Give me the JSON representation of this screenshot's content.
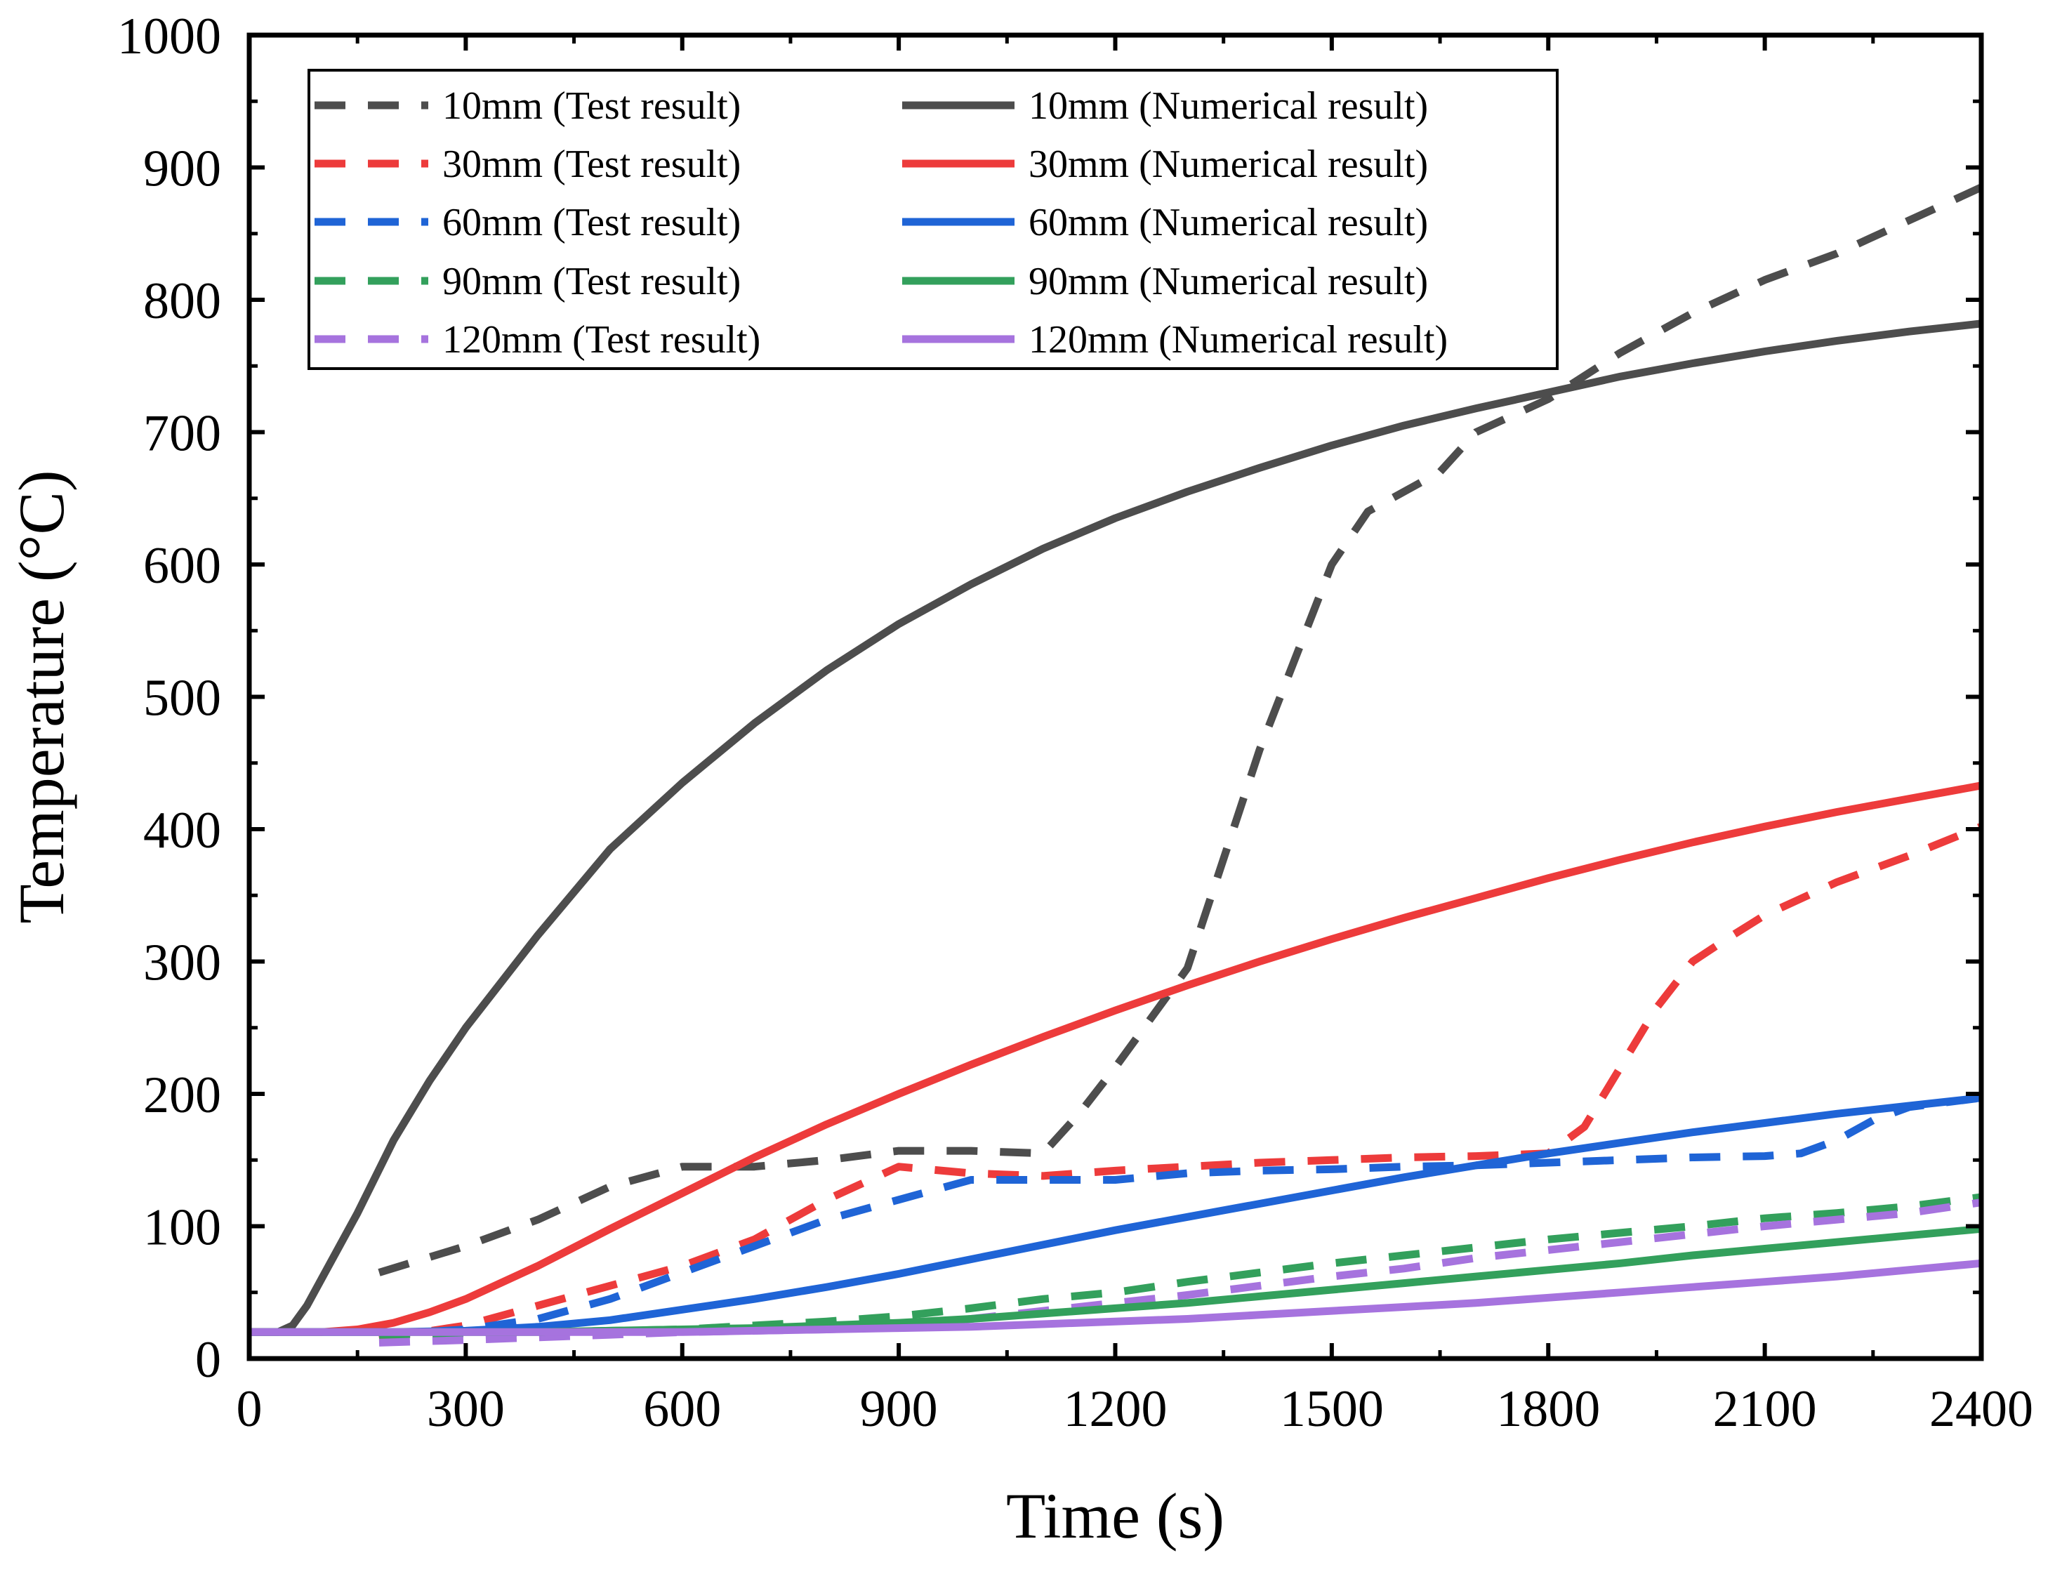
{
  "chart_data": {
    "type": "line",
    "title": "",
    "xlabel": "Time (s)",
    "ylabel": "Temperature (°C)",
    "xlim": [
      0,
      2400
    ],
    "ylim": [
      0,
      1000
    ],
    "xticks": [
      0,
      300,
      600,
      900,
      1200,
      1500,
      1800,
      2100,
      2400
    ],
    "yticks": [
      0,
      100,
      200,
      300,
      400,
      500,
      600,
      700,
      800,
      900,
      1000
    ],
    "xtick_labels": [
      "0",
      "300",
      "600",
      "900",
      "1200",
      "1500",
      "1800",
      "2100",
      "2400"
    ],
    "ytick_labels": [
      "0",
      "100",
      "200",
      "300",
      "400",
      "500",
      "600",
      "700",
      "800",
      "900",
      "1000"
    ],
    "grid": false,
    "legend_position": "top-left",
    "series": [
      {
        "name": "10mm (Test result)",
        "style": "dashed",
        "color": "#4d4d4d",
        "x": [
          180,
          300,
          400,
          500,
          600,
          700,
          800,
          900,
          1000,
          1100,
          1150,
          1200,
          1300,
          1400,
          1500,
          1550,
          1650,
          1700,
          1800,
          1900,
          2000,
          2100,
          2200,
          2300,
          2400
        ],
        "y": [
          65,
          85,
          105,
          130,
          145,
          145,
          150,
          157,
          157,
          155,
          185,
          220,
          295,
          460,
          600,
          640,
          670,
          700,
          725,
          760,
          790,
          815,
          835,
          860,
          885
        ]
      },
      {
        "name": "30mm (Test result)",
        "style": "dashed",
        "color": "#ed3b3b",
        "x": [
          180,
          300,
          400,
          500,
          600,
          700,
          800,
          900,
          1000,
          1100,
          1200,
          1300,
          1400,
          1500,
          1600,
          1700,
          1800,
          1850,
          1900,
          1950,
          2000,
          2050,
          2100,
          2200,
          2300,
          2400
        ],
        "y": [
          15,
          25,
          40,
          55,
          70,
          90,
          120,
          145,
          140,
          138,
          142,
          145,
          148,
          150,
          152,
          153,
          155,
          175,
          220,
          265,
          300,
          318,
          335,
          360,
          380,
          402
        ]
      },
      {
        "name": "60mm (Test result)",
        "style": "dashed",
        "color": "#1f64d6",
        "x": [
          180,
          300,
          400,
          500,
          600,
          700,
          800,
          900,
          1000,
          1100,
          1200,
          1300,
          1400,
          1500,
          1600,
          1700,
          1800,
          1900,
          2000,
          2100,
          2150,
          2200,
          2250,
          2300,
          2400
        ],
        "y": [
          18,
          22,
          30,
          45,
          65,
          85,
          105,
          120,
          135,
          135,
          135,
          140,
          142,
          143,
          145,
          146,
          148,
          150,
          152,
          153,
          155,
          165,
          180,
          190,
          197
        ]
      },
      {
        "name": "90mm (Test result)",
        "style": "dashed",
        "color": "#33a05c",
        "x": [
          180,
          300,
          400,
          500,
          600,
          700,
          800,
          900,
          1000,
          1100,
          1200,
          1300,
          1400,
          1500,
          1600,
          1700,
          1800,
          1900,
          2000,
          2100,
          2200,
          2300,
          2400
        ],
        "y": [
          18,
          19,
          20,
          21,
          22,
          25,
          28,
          32,
          38,
          45,
          50,
          58,
          65,
          72,
          78,
          84,
          90,
          95,
          100,
          106,
          110,
          115,
          122
        ]
      },
      {
        "name": "120mm (Test result)",
        "style": "dashed",
        "color": "#a673de",
        "x": [
          180,
          300,
          400,
          500,
          600,
          700,
          800,
          900,
          1000,
          1100,
          1200,
          1300,
          1400,
          1500,
          1600,
          1700,
          1800,
          1900,
          2000,
          2100,
          2200,
          2300,
          2400
        ],
        "y": [
          12,
          14,
          16,
          18,
          20,
          21,
          22,
          24,
          30,
          36,
          42,
          48,
          55,
          62,
          68,
          76,
          82,
          88,
          94,
          100,
          105,
          110,
          118
        ]
      },
      {
        "name": "10mm (Numerical result)",
        "style": "solid",
        "color": "#4d4d4d",
        "x": [
          0,
          40,
          60,
          80,
          100,
          150,
          200,
          250,
          300,
          400,
          500,
          600,
          700,
          800,
          900,
          1000,
          1100,
          1200,
          1300,
          1400,
          1500,
          1600,
          1700,
          1800,
          1900,
          2000,
          2100,
          2200,
          2300,
          2400
        ],
        "y": [
          20,
          20,
          25,
          40,
          60,
          110,
          165,
          210,
          250,
          320,
          385,
          435,
          480,
          520,
          555,
          585,
          612,
          635,
          655,
          673,
          690,
          705,
          718,
          730,
          742,
          752,
          761,
          769,
          776,
          782
        ]
      },
      {
        "name": "30mm (Numerical result)",
        "style": "solid",
        "color": "#ed3b3b",
        "x": [
          0,
          100,
          150,
          200,
          250,
          300,
          400,
          500,
          600,
          700,
          800,
          900,
          1000,
          1100,
          1200,
          1300,
          1400,
          1500,
          1600,
          1700,
          1800,
          1900,
          2000,
          2100,
          2200,
          2300,
          2400
        ],
        "y": [
          20,
          20,
          22,
          27,
          35,
          45,
          70,
          98,
          125,
          152,
          177,
          200,
          222,
          243,
          263,
          282,
          300,
          317,
          333,
          348,
          363,
          377,
          390,
          402,
          413,
          423,
          433
        ]
      },
      {
        "name": "60mm (Numerical result)",
        "style": "solid",
        "color": "#1f64d6",
        "x": [
          0,
          200,
          300,
          400,
          500,
          600,
          700,
          800,
          900,
          1000,
          1100,
          1200,
          1300,
          1400,
          1500,
          1600,
          1700,
          1800,
          1900,
          2000,
          2100,
          2200,
          2300,
          2400
        ],
        "y": [
          20,
          20,
          21,
          24,
          29,
          37,
          45,
          54,
          64,
          75,
          86,
          97,
          107,
          117,
          127,
          137,
          146,
          155,
          163,
          171,
          178,
          185,
          191,
          197
        ]
      },
      {
        "name": "90mm (Numerical result)",
        "style": "solid",
        "color": "#33a05c",
        "x": [
          0,
          300,
          400,
          500,
          600,
          700,
          800,
          900,
          1000,
          1100,
          1200,
          1300,
          1400,
          1500,
          1600,
          1700,
          1800,
          1900,
          2000,
          2100,
          2200,
          2300,
          2400
        ],
        "y": [
          20,
          20,
          20,
          21,
          22,
          23,
          25,
          27,
          30,
          34,
          38,
          42,
          47,
          52,
          57,
          62,
          67,
          72,
          78,
          83,
          88,
          93,
          98
        ]
      },
      {
        "name": "120mm (Numerical result)",
        "style": "solid",
        "color": "#a673de",
        "x": [
          0,
          400,
          600,
          700,
          800,
          900,
          1000,
          1100,
          1200,
          1300,
          1400,
          1500,
          1600,
          1700,
          1800,
          1900,
          2000,
          2100,
          2200,
          2300,
          2400
        ],
        "y": [
          20,
          20,
          20,
          21,
          22,
          23,
          24,
          26,
          28,
          30,
          33,
          36,
          39,
          42,
          46,
          50,
          54,
          58,
          62,
          67,
          72
        ]
      }
    ]
  }
}
